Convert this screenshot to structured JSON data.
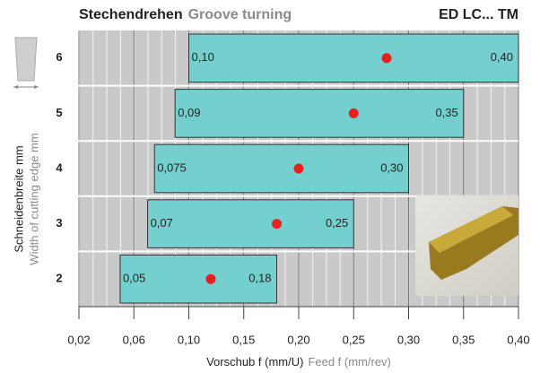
{
  "chart_data": {
    "type": "range-bar",
    "title": "Stechendrehen",
    "subtitle": "Groove turning",
    "product": "ED LC... TM",
    "ylabel": [
      "Schneidenbreite mm",
      "Width of cutting edge mm"
    ],
    "xlabel": [
      "Vorschub f (mm/U)",
      "Feed f (mm/rev)"
    ],
    "categories": [
      "6",
      "5",
      "4",
      "3",
      "2"
    ],
    "low": [
      0.1,
      0.09,
      0.075,
      0.07,
      0.05
    ],
    "low_labels": [
      "0,10",
      "0,09",
      "0,075",
      "0,07",
      "0,05"
    ],
    "high": [
      0.4,
      0.35,
      0.3,
      0.25,
      0.18
    ],
    "high_labels": [
      "0,40",
      "0,35",
      "0,30",
      "0,25",
      "0,18"
    ],
    "recommended": [
      0.28,
      0.25,
      0.2,
      0.18,
      0.12
    ],
    "bar_color": "#74d0cf",
    "dot_color": "#e8201e",
    "xlim": [
      0.02,
      0.4
    ],
    "xticks": [
      {
        "value": 0.02,
        "label": "0,02"
      },
      {
        "value": 0.06,
        "label": "0,06"
      },
      {
        "value": 0.1,
        "label": "0,10"
      },
      {
        "value": 0.15,
        "label": "0,15"
      },
      {
        "value": 0.2,
        "label": "0,20"
      },
      {
        "value": 0.25,
        "label": "0,25"
      },
      {
        "value": 0.3,
        "label": "0,30"
      },
      {
        "value": 0.35,
        "label": "0,35"
      },
      {
        "value": 0.4,
        "label": "0,40"
      }
    ]
  }
}
